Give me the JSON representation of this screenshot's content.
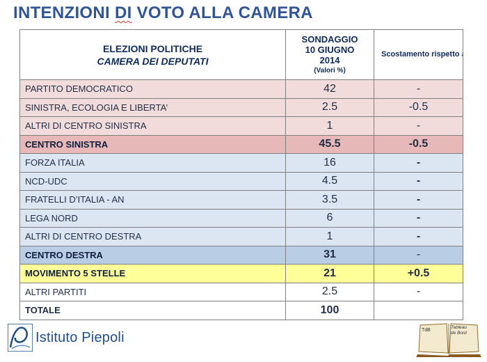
{
  "title": {
    "part1": "INTENZIONI ",
    "part2": "DI",
    "part3": " VOTO ALLA CAMERA"
  },
  "header": {
    "col1_line1": "ELEZIONI POLITICHE",
    "col1_line2": "CAMERA DEI DEPUTATI",
    "col2_line1": "SONDAGGIO",
    "col2_line2": "10 GIUGNO",
    "col2_line3": "2014",
    "col2_line4": "(Valori %)",
    "col3": "Scostamento rispetto alla settimana precedente"
  },
  "rows": [
    {
      "name": "PARTITO DEMOCRATICO",
      "value": "42",
      "delta": "-"
    },
    {
      "name": "SINISTRA, ECOLOGIA E LIBERTA’",
      "value": "2.5",
      "delta": "-0.5"
    },
    {
      "name": "ALTRI DI CENTRO SINISTRA",
      "value": "1",
      "delta": "-"
    },
    {
      "name": "CENTRO SINISTRA",
      "value": "45.5",
      "delta": "-0.5"
    },
    {
      "name": "FORZA ITALIA",
      "value": "16",
      "delta": "-"
    },
    {
      "name": "NCD-UDC",
      "value": "4.5",
      "delta": "-"
    },
    {
      "name": "FRATELLI D’ITALIA - AN",
      "value": "3.5",
      "delta": "-"
    },
    {
      "name": "LEGA NORD",
      "value": "6",
      "delta": "-"
    },
    {
      "name": "ALTRI DI CENTRO DESTRA",
      "value": "1",
      "delta": "-"
    },
    {
      "name": "CENTRO DESTRA",
      "value": "31",
      "delta": "-"
    },
    {
      "name": "MOVIMENTO 5 STELLE",
      "value": "21",
      "delta": "+0.5"
    },
    {
      "name": "ALTRI PARTITI",
      "value": "2.5",
      "delta": "-"
    },
    {
      "name": "TOTALE",
      "value": "100",
      "delta": ""
    }
  ],
  "footer": {
    "logo_text": "Istituto Piepoli",
    "book_left": "TdB",
    "book_right": "Tableau de Bord"
  }
}
